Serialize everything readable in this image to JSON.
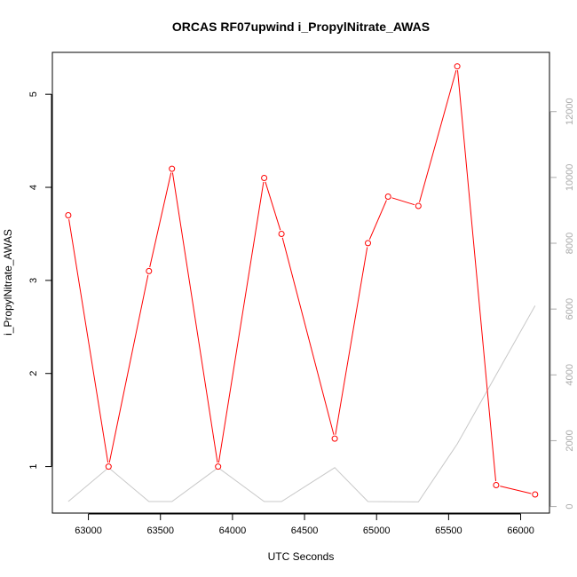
{
  "chart_data": {
    "type": "line",
    "title": "ORCAS RF07upwind i_PropylNitrate_AWAS",
    "xlabel": "UTC Seconds",
    "ylabel": "i_PropylNitrate_AWAS",
    "xlim": [
      62750,
      66200
    ],
    "ylim": [
      0.5,
      5.45
    ],
    "y2lim": [
      -200,
      13800
    ],
    "x_ticks": [
      "63000",
      "63500",
      "64000",
      "64500",
      "65000",
      "65500",
      "66000"
    ],
    "y_ticks": [
      "1",
      "2",
      "3",
      "4",
      "5"
    ],
    "y2_ticks": [
      "0",
      "2000",
      "4000",
      "6000",
      "8000",
      "10000",
      "12000"
    ],
    "colors": {
      "primary": "#ff0000",
      "secondary": "#c8c8c8"
    },
    "series": [
      {
        "axis": "left",
        "style": "line+markers",
        "x": [
          62860,
          63140,
          63420,
          63580,
          63900,
          64220,
          64340,
          64710,
          64940,
          65080,
          65290,
          65560,
          65830,
          66100
        ],
        "y": [
          3.7,
          1.0,
          3.1,
          4.2,
          1.0,
          4.1,
          3.5,
          1.3,
          3.4,
          3.9,
          3.8,
          5.3,
          0.8,
          0.7
        ]
      },
      {
        "axis": "right",
        "style": "line",
        "x": [
          62860,
          63140,
          63420,
          63580,
          63900,
          64220,
          64340,
          64710,
          64940,
          65290,
          65560,
          65830,
          66100
        ],
        "y": [
          150,
          1180,
          150,
          150,
          1180,
          150,
          150,
          1180,
          150,
          140,
          1900,
          4000,
          6100
        ]
      }
    ]
  }
}
